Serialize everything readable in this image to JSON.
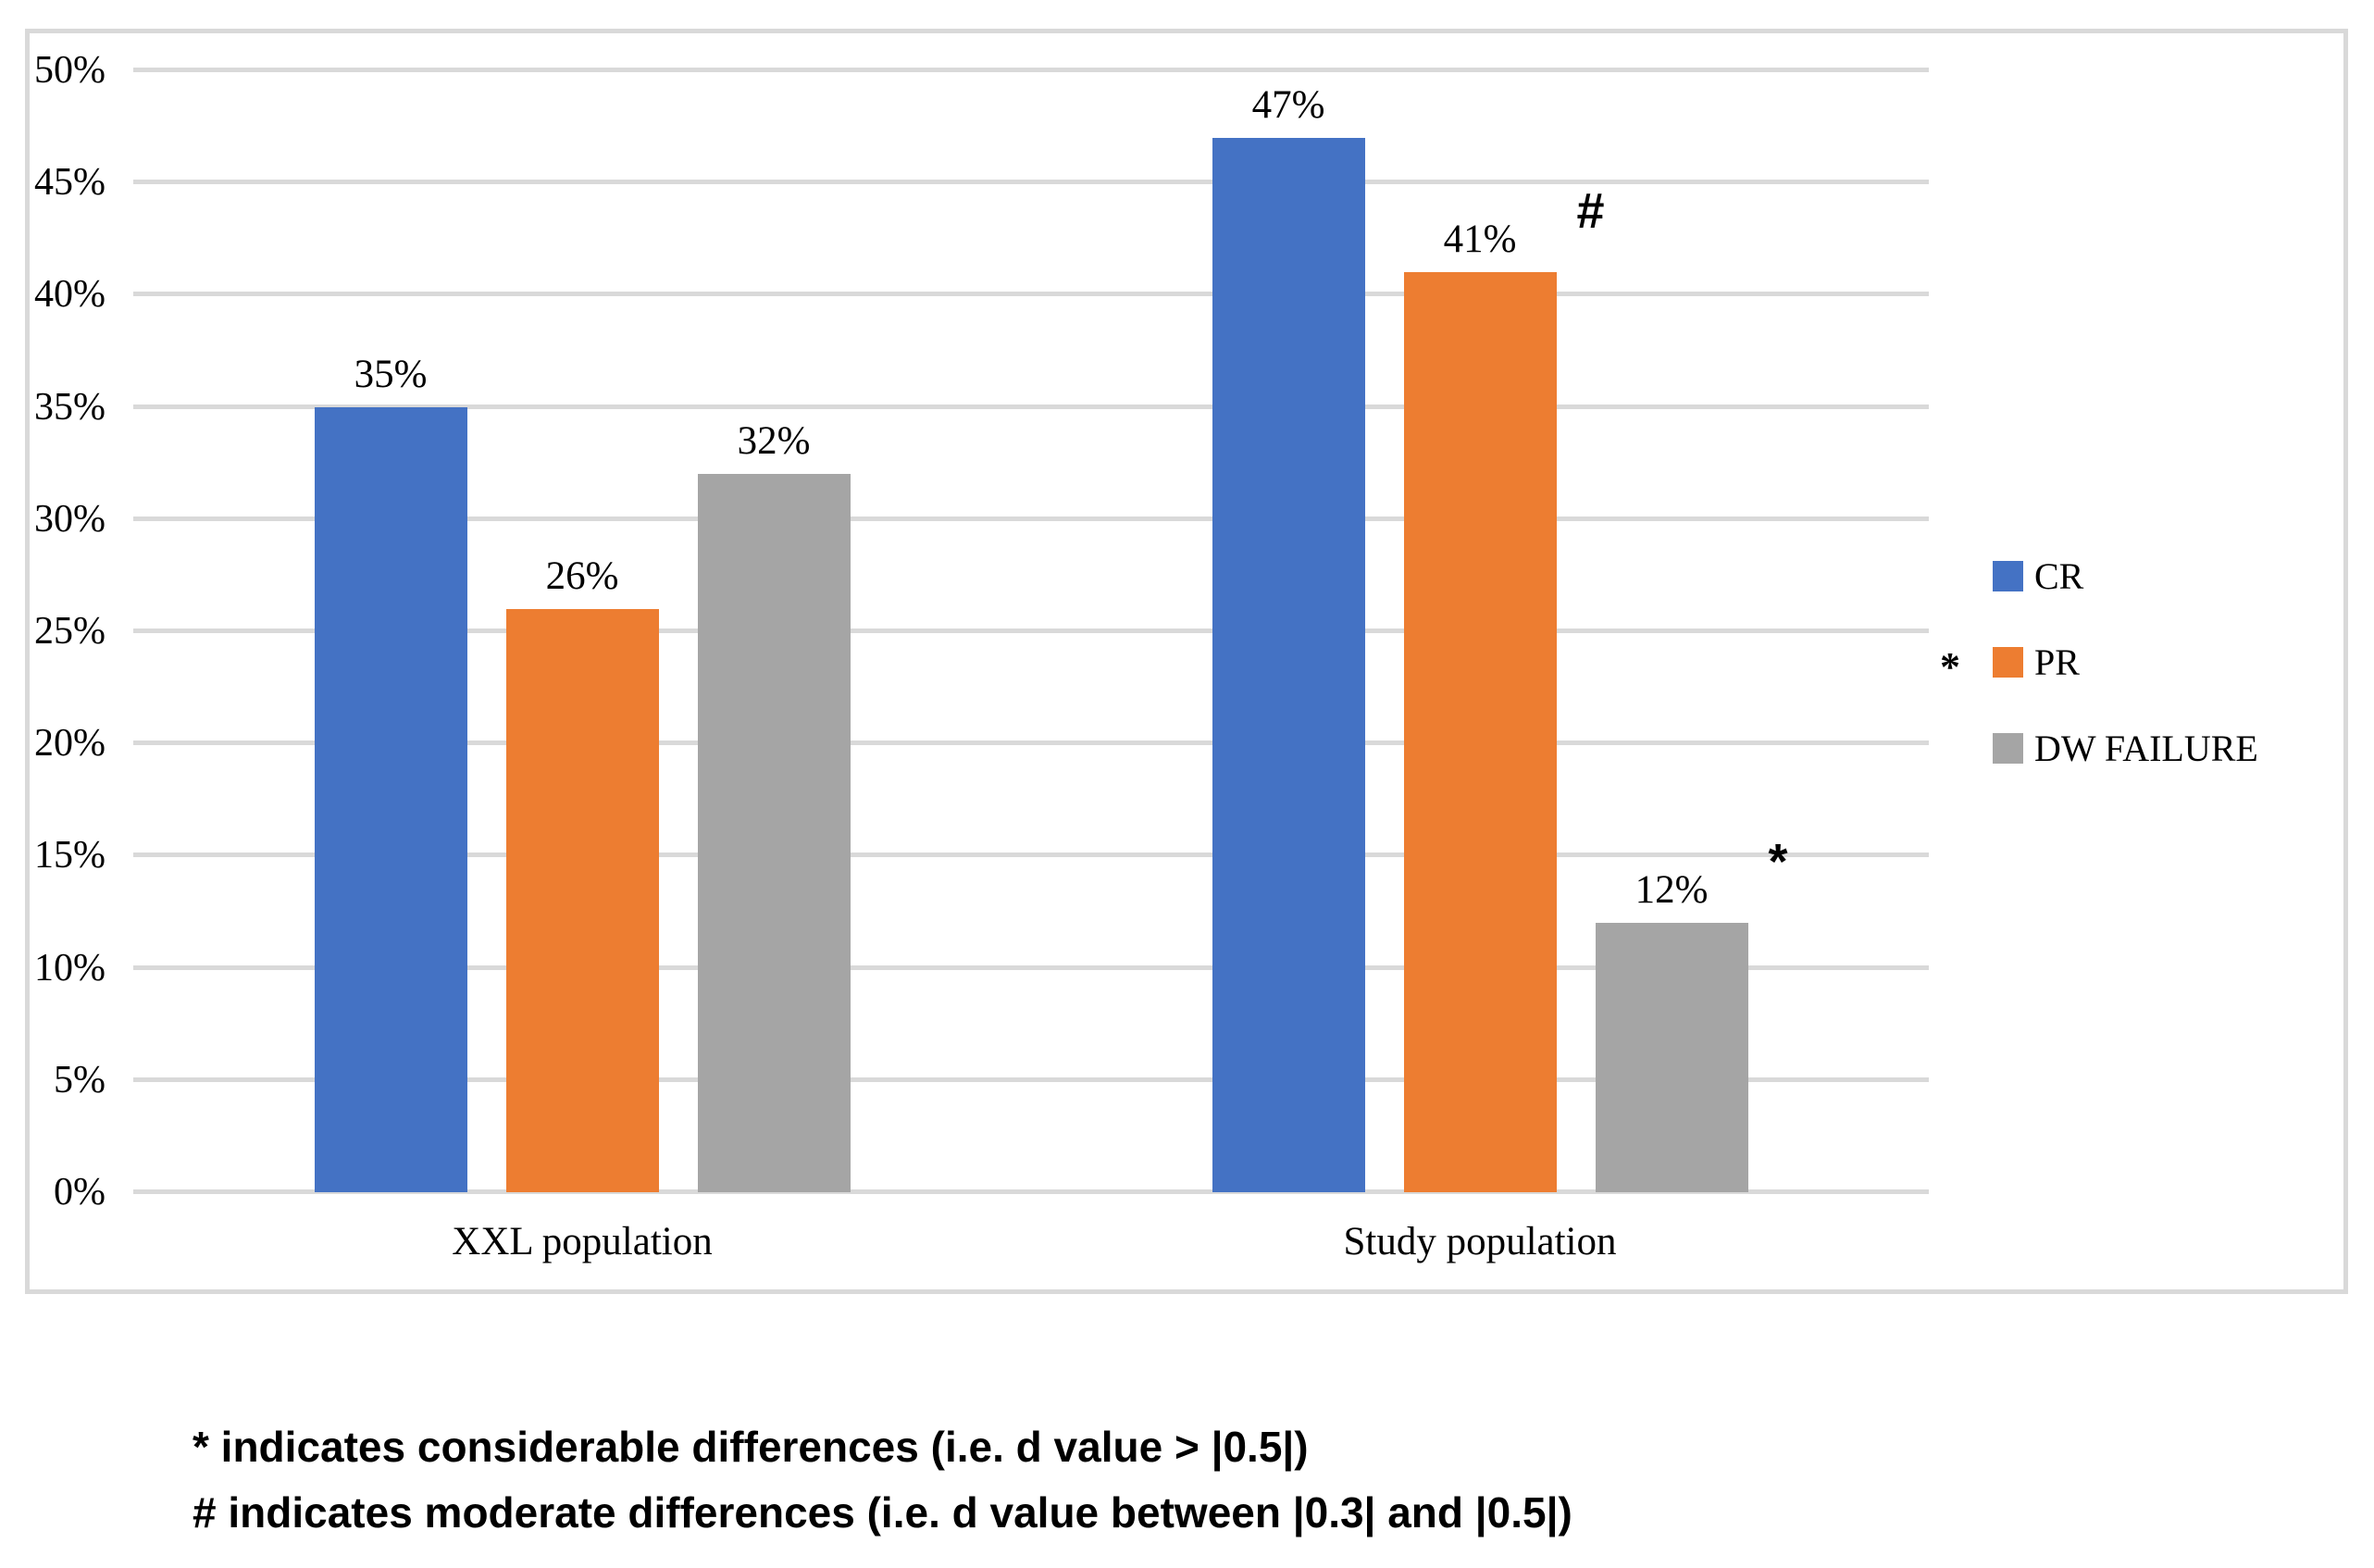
{
  "chart_data": {
    "type": "bar",
    "title": "",
    "categories": [
      "XXL population",
      "Study population"
    ],
    "series": [
      {
        "name": "CR",
        "color": "#4472C4",
        "values": [
          35,
          47
        ],
        "labels": [
          "35%",
          "47%"
        ],
        "markers": [
          "",
          ""
        ]
      },
      {
        "name": "PR",
        "color": "#ED7D31",
        "values": [
          26,
          41
        ],
        "labels": [
          "26%",
          "41%"
        ],
        "markers": [
          "",
          "#"
        ]
      },
      {
        "name": "DW FAILURE",
        "color": "#A5A5A5",
        "values": [
          32,
          12
        ],
        "labels": [
          "32%",
          "12%"
        ],
        "markers": [
          "",
          "*"
        ]
      }
    ],
    "ylim": [
      0,
      50
    ],
    "ytick_step": 5,
    "yticks": [
      {
        "value": 0,
        "label": "0%"
      },
      {
        "value": 5,
        "label": "5%"
      },
      {
        "value": 10,
        "label": "10%"
      },
      {
        "value": 15,
        "label": "15%"
      },
      {
        "value": 20,
        "label": "20%"
      },
      {
        "value": 25,
        "label": "25%"
      },
      {
        "value": 30,
        "label": "30%"
      },
      {
        "value": 35,
        "label": "35%"
      },
      {
        "value": 40,
        "label": "40%"
      },
      {
        "value": 45,
        "label": "45%"
      },
      {
        "value": 50,
        "label": "50%"
      }
    ],
    "grid": true,
    "legend_position": "right",
    "legend": {
      "items": [
        {
          "label": "CR",
          "color": "#4472C4",
          "annotation": ""
        },
        {
          "label": "PR",
          "color": "#ED7D31",
          "annotation": "*"
        },
        {
          "label": "DW FAILURE",
          "color": "#A5A5A5",
          "annotation": ""
        }
      ]
    }
  },
  "footnotes": {
    "line1": "* indicates considerable differences (i.e. d value > |0.5|)",
    "line2": "# indicates moderate differences (i.e. d value between |0.3| and |0.5|)"
  },
  "colors": {
    "grid": "#D9D9D9",
    "panel_border": "#D9D9D9",
    "text": "#000000",
    "background": "#FFFFFF"
  }
}
